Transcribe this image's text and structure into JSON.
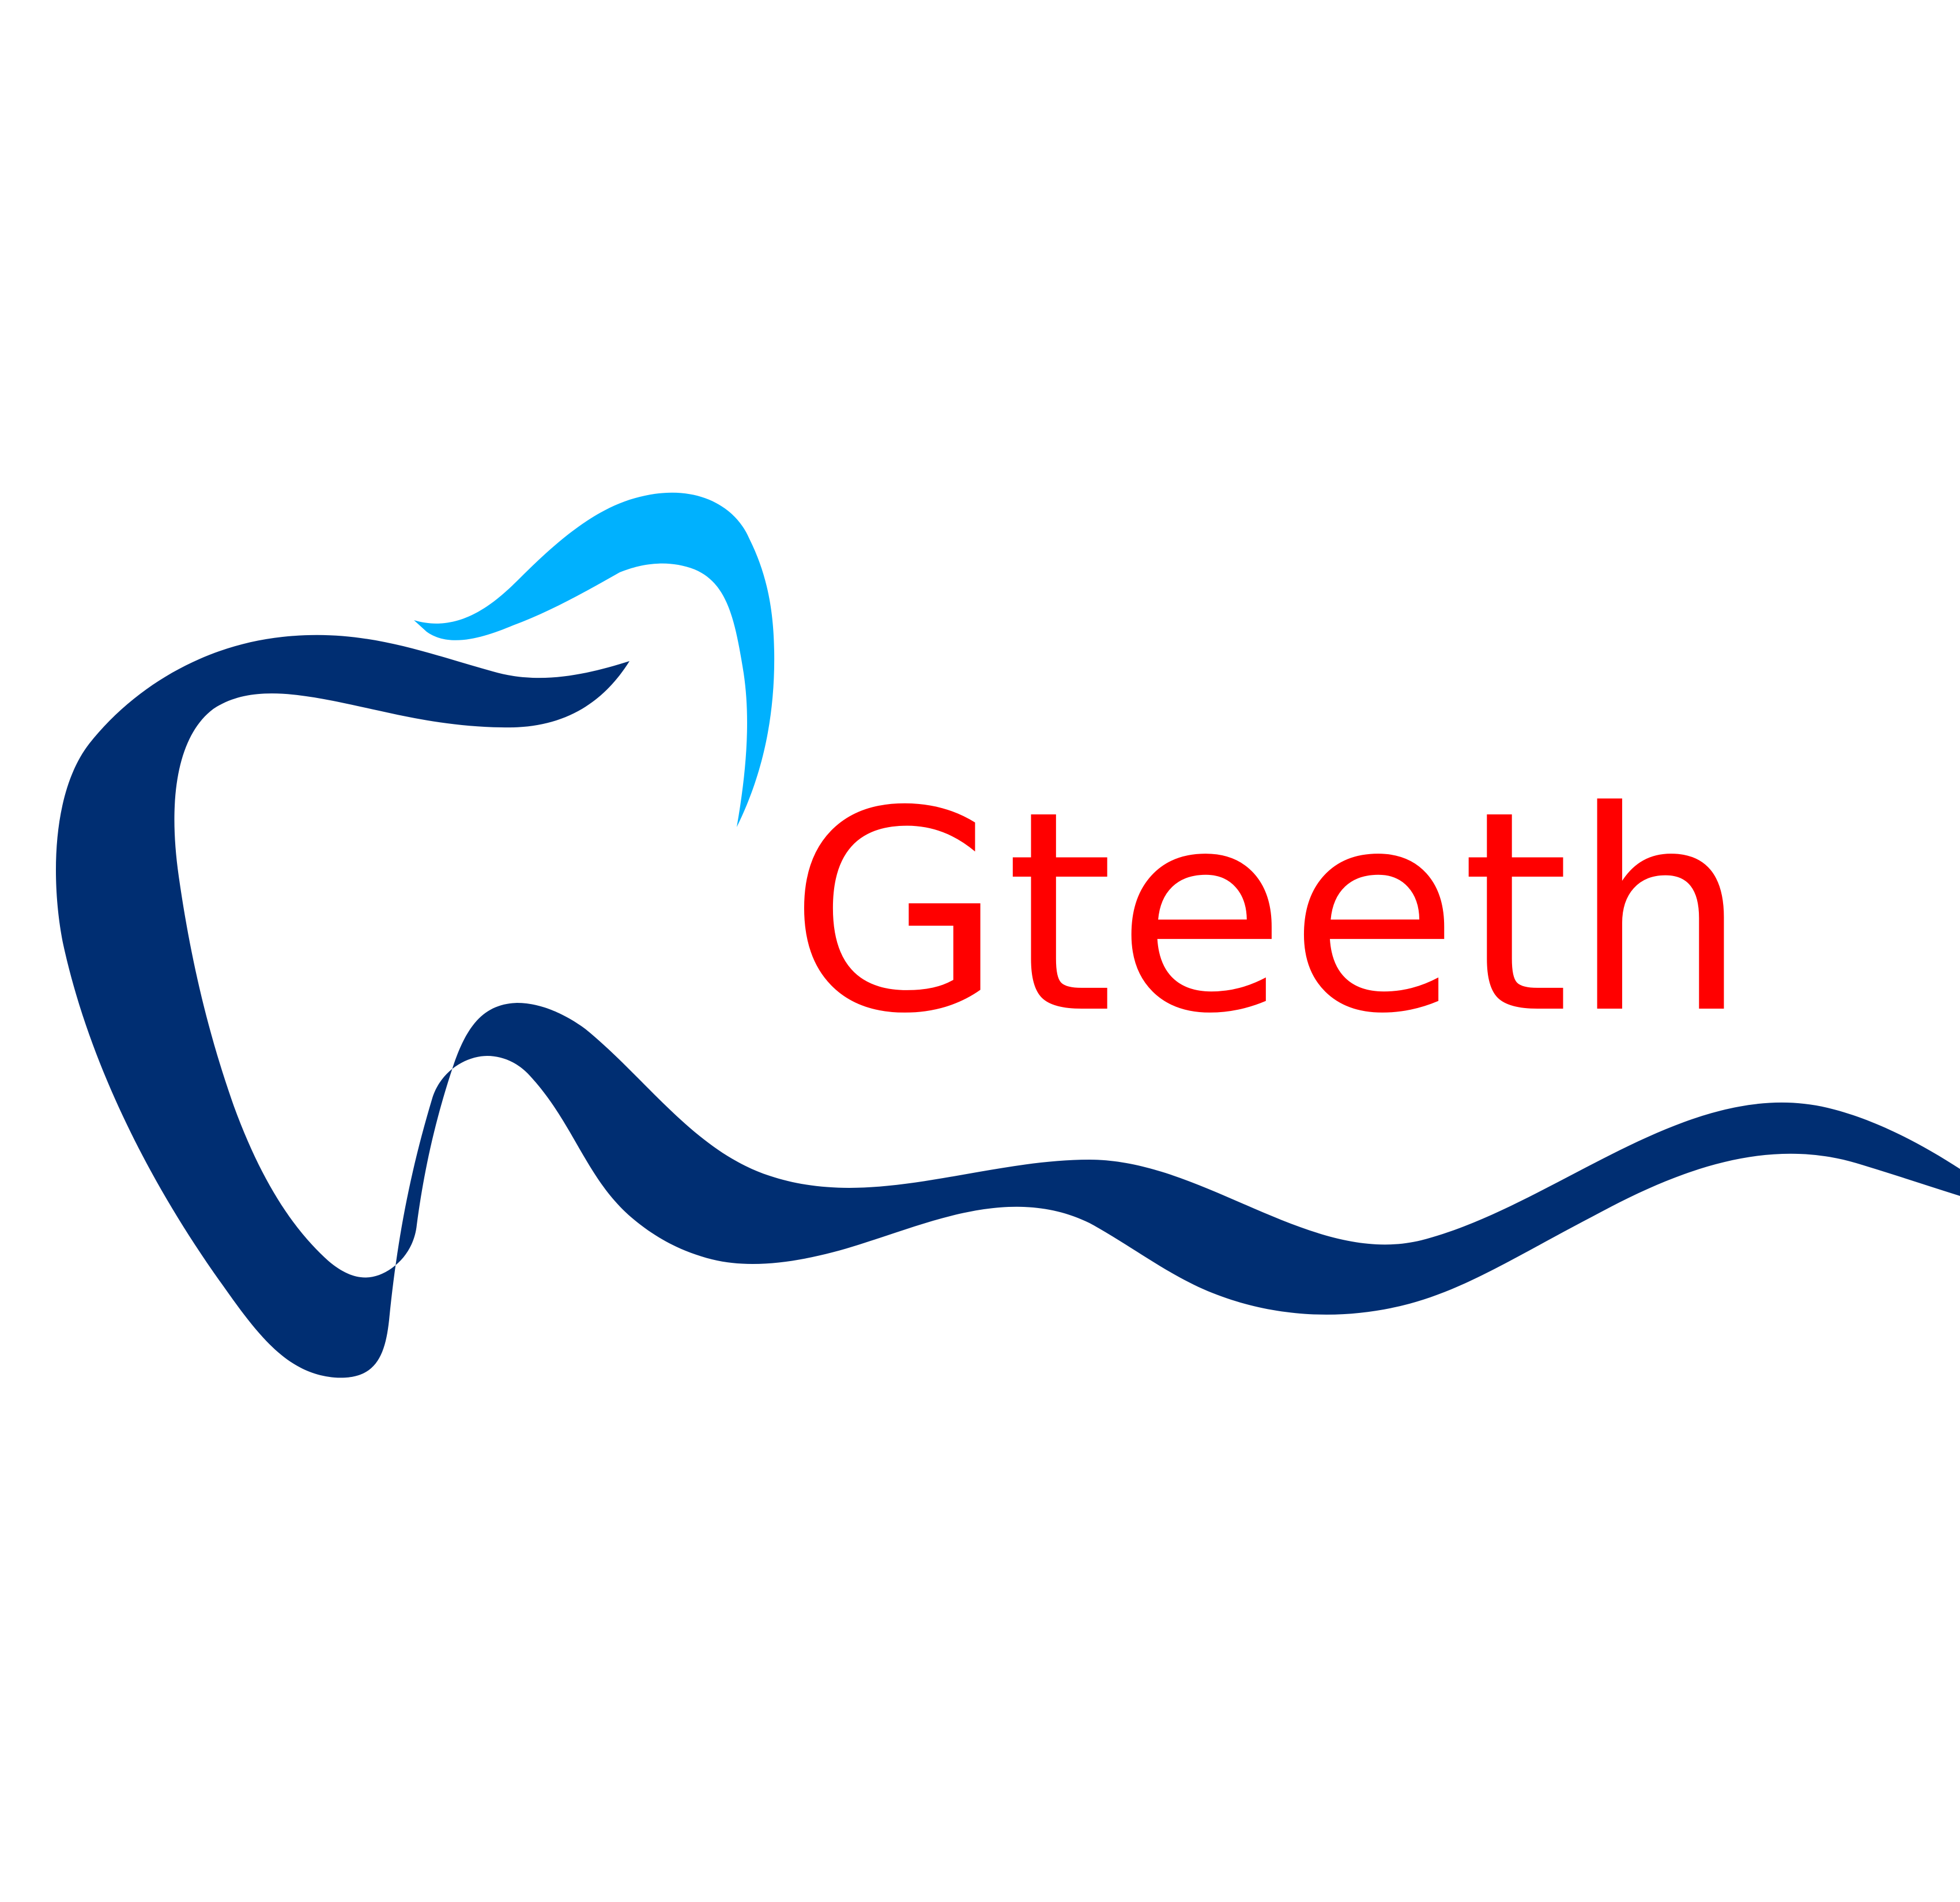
{
  "logo": {
    "wordmark": "Gteeth",
    "icon": "tooth-icon",
    "colors": {
      "wordmark": "#ff0000",
      "tooth_outline": "#002e72",
      "tooth_highlight": "#00b1fe",
      "background": "#ffffff"
    }
  }
}
